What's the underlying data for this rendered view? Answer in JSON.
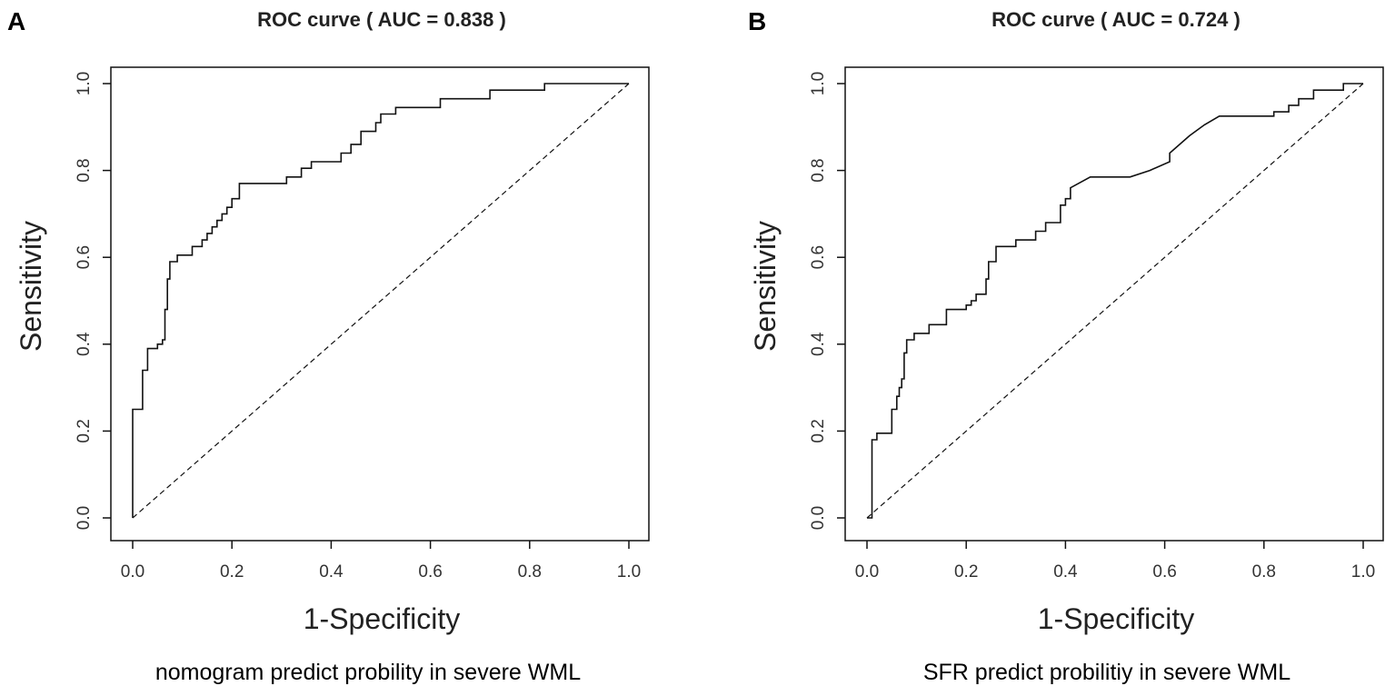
{
  "chart_data": [
    {
      "type": "line",
      "panel_label": "A",
      "title": "ROC curve ( AUC =  0.838 )",
      "xlabel": "1-Specificity",
      "ylabel": "Sensitivity",
      "caption": "nomogram predict probility in severe WML",
      "xlim": [
        0,
        1
      ],
      "ylim": [
        0,
        1
      ],
      "xticks": [
        "0.0",
        "0.2",
        "0.4",
        "0.6",
        "0.8",
        "1.0"
      ],
      "yticks": [
        "0.0",
        "0.2",
        "0.4",
        "0.6",
        "0.8",
        "1.0"
      ],
      "series": [
        {
          "name": "ROC curve",
          "style": "solid",
          "x": [
            0.0,
            0.0,
            0.02,
            0.02,
            0.03,
            0.03,
            0.04,
            0.04,
            0.05,
            0.05,
            0.06,
            0.06,
            0.065,
            0.065,
            0.07,
            0.07,
            0.075,
            0.075,
            0.09,
            0.09,
            0.12,
            0.12,
            0.14,
            0.14,
            0.15,
            0.15,
            0.16,
            0.16,
            0.17,
            0.17,
            0.18,
            0.18,
            0.19,
            0.19,
            0.2,
            0.2,
            0.215,
            0.215,
            0.31,
            0.31,
            0.34,
            0.34,
            0.36,
            0.36,
            0.42,
            0.42,
            0.44,
            0.44,
            0.46,
            0.46,
            0.49,
            0.49,
            0.5,
            0.5,
            0.53,
            0.53,
            0.62,
            0.62,
            0.72,
            0.72,
            0.83,
            0.83,
            1.0
          ],
          "y": [
            0.0,
            0.25,
            0.25,
            0.34,
            0.34,
            0.39,
            0.39,
            0.39,
            0.39,
            0.4,
            0.4,
            0.41,
            0.41,
            0.48,
            0.48,
            0.55,
            0.55,
            0.59,
            0.59,
            0.605,
            0.605,
            0.625,
            0.625,
            0.64,
            0.64,
            0.655,
            0.655,
            0.67,
            0.67,
            0.685,
            0.685,
            0.7,
            0.7,
            0.715,
            0.715,
            0.735,
            0.735,
            0.77,
            0.77,
            0.785,
            0.785,
            0.805,
            0.805,
            0.82,
            0.82,
            0.84,
            0.84,
            0.86,
            0.86,
            0.89,
            0.89,
            0.91,
            0.91,
            0.93,
            0.93,
            0.945,
            0.945,
            0.965,
            0.965,
            0.985,
            0.985,
            1.0,
            1.0
          ]
        },
        {
          "name": "Reference line",
          "style": "dashed",
          "x": [
            0,
            1
          ],
          "y": [
            0,
            1
          ]
        }
      ]
    },
    {
      "type": "line",
      "panel_label": "B",
      "title": "ROC curve ( AUC =  0.724 )",
      "xlabel": "1-Specificity",
      "ylabel": "Sensitivity",
      "caption": "SFR predict probilitiy in severe WML",
      "xlim": [
        0,
        1
      ],
      "ylim": [
        0,
        1
      ],
      "xticks": [
        "0.0",
        "0.2",
        "0.4",
        "0.6",
        "0.8",
        "1.0"
      ],
      "yticks": [
        "0.0",
        "0.2",
        "0.4",
        "0.6",
        "0.8",
        "1.0"
      ],
      "series": [
        {
          "name": "ROC curve",
          "style": "solid",
          "x": [
            0.0,
            0.01,
            0.01,
            0.02,
            0.02,
            0.05,
            0.05,
            0.06,
            0.06,
            0.065,
            0.065,
            0.07,
            0.07,
            0.075,
            0.075,
            0.08,
            0.08,
            0.095,
            0.095,
            0.125,
            0.125,
            0.16,
            0.16,
            0.2,
            0.2,
            0.21,
            0.21,
            0.22,
            0.22,
            0.24,
            0.24,
            0.245,
            0.245,
            0.26,
            0.26,
            0.3,
            0.3,
            0.34,
            0.34,
            0.36,
            0.36,
            0.39,
            0.39,
            0.4,
            0.4,
            0.41,
            0.41,
            0.45,
            0.53,
            0.57,
            0.57,
            0.61,
            0.61,
            0.65,
            0.68,
            0.71,
            0.73,
            0.82,
            0.82,
            0.85,
            0.85,
            0.87,
            0.87,
            0.9,
            0.9,
            0.94,
            0.94,
            0.96,
            0.96,
            1.0
          ],
          "y": [
            0.0,
            0.0,
            0.18,
            0.18,
            0.195,
            0.195,
            0.25,
            0.25,
            0.28,
            0.28,
            0.3,
            0.3,
            0.32,
            0.32,
            0.38,
            0.38,
            0.41,
            0.41,
            0.425,
            0.425,
            0.445,
            0.445,
            0.48,
            0.48,
            0.49,
            0.49,
            0.5,
            0.5,
            0.515,
            0.515,
            0.55,
            0.55,
            0.59,
            0.59,
            0.625,
            0.625,
            0.64,
            0.64,
            0.66,
            0.66,
            0.68,
            0.68,
            0.72,
            0.72,
            0.735,
            0.735,
            0.76,
            0.785,
            0.785,
            0.8,
            0.8,
            0.82,
            0.84,
            0.88,
            0.905,
            0.925,
            0.925,
            0.925,
            0.935,
            0.935,
            0.95,
            0.95,
            0.965,
            0.965,
            0.985,
            0.985,
            0.985,
            0.985,
            1.0,
            1.0
          ]
        },
        {
          "name": "Reference line",
          "style": "dashed",
          "x": [
            0,
            1
          ],
          "y": [
            0,
            1
          ]
        }
      ]
    }
  ]
}
